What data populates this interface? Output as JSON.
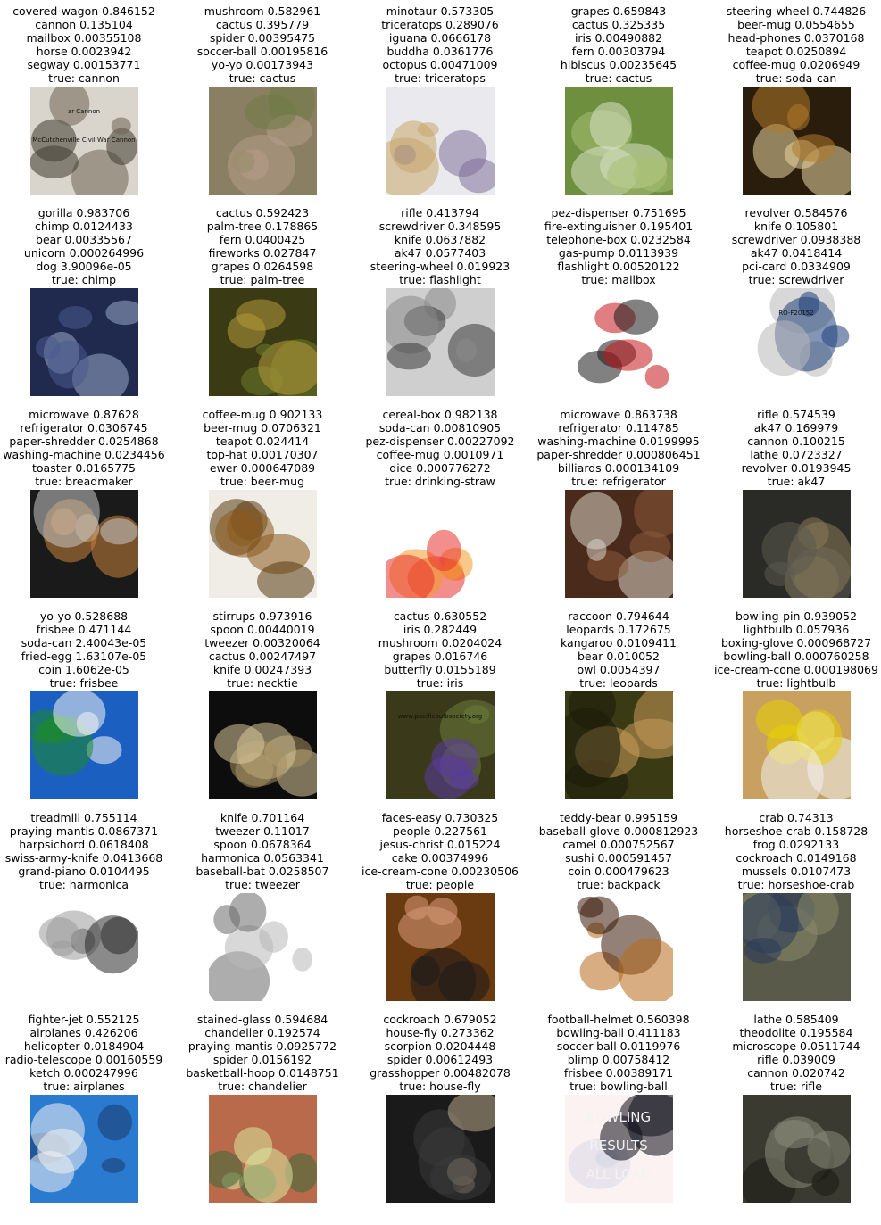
{
  "cells": [
    {
      "preds": [
        "covered-wagon 0.846152",
        "cannon 0.135104",
        "mailbox 0.00355108",
        "horse 0.0023942",
        "segway 0.00153771"
      ],
      "truth": "true: cannon",
      "image": "cannon-shelter-photo",
      "image_text": [
        "ar Cannon",
        "McCutchenville Civil War Cannon"
      ],
      "colors": [
        "#d9d4cc",
        "#6e6250",
        "#3f3a30"
      ]
    },
    {
      "preds": [
        "mushroom 0.582961",
        "cactus 0.395779",
        "spider 0.00395475",
        "soccer-ball 0.00195816",
        "yo-yo 0.00173943"
      ],
      "truth": "true: cactus",
      "image": "barrel-cactus-photo",
      "colors": [
        "#8a7f63",
        "#6f7a46",
        "#b79c8a"
      ]
    },
    {
      "preds": [
        "minotaur 0.573305",
        "triceratops 0.289076",
        "iguana 0.0666178",
        "buddha 0.0361776",
        "octopus 0.00471009"
      ],
      "truth": "true: triceratops",
      "image": "triceratops-figure-photo",
      "colors": [
        "#eaeaee",
        "#7f6f9a",
        "#c7a66a"
      ]
    },
    {
      "preds": [
        "grapes 0.659843",
        "cactus 0.325335",
        "iris 0.00490882",
        "fern 0.00303794",
        "hibiscus 0.00235645"
      ],
      "truth": "true: cactus",
      "image": "prickly-pear-photo",
      "colors": [
        "#6d8f3e",
        "#a7bf73",
        "#d8e2c4"
      ]
    },
    {
      "preds": [
        "steering-wheel 0.744826",
        "beer-mug 0.0554655",
        "head-phones 0.0370168",
        "teapot 0.0250894",
        "coffee-mug 0.0206949"
      ],
      "truth": "true: soda-can",
      "image": "soda-can-photo",
      "colors": [
        "#2b1d0c",
        "#b07a2a",
        "#e8d6a0"
      ]
    },
    {
      "preds": [
        "gorilla 0.983706",
        "chimp 0.0124433",
        "bear 0.00335567",
        "unicorn 0.000264996",
        "dog 3.90096e-05"
      ],
      "truth": "true: chimp",
      "image": "chimp-face-photo",
      "colors": [
        "#1f2a4e",
        "#4a5a8f",
        "#9aa8c8"
      ]
    },
    {
      "preds": [
        "cactus 0.592423",
        "palm-tree 0.178865",
        "fern 0.0400425",
        "fireworks 0.027847",
        "grapes 0.0264598"
      ],
      "truth": "true: palm-tree",
      "image": "palm-frond-photo",
      "colors": [
        "#3a3a14",
        "#b49a3a",
        "#6d7a2c"
      ]
    },
    {
      "preds": [
        "rifle 0.413794",
        "screwdriver 0.348595",
        "knife 0.0637882",
        "ak47 0.0577403",
        "steering-wheel 0.019923"
      ],
      "truth": "true: flashlight",
      "image": "tool-case-photo",
      "colors": [
        "#cfcfcf",
        "#3a3a3a",
        "#8a8a8a"
      ]
    },
    {
      "preds": [
        "pez-dispenser 0.751695",
        "fire-extinguisher 0.195401",
        "telephone-box 0.0232584",
        "gas-pump 0.0113939",
        "flashlight 0.00520122"
      ],
      "truth": "true: mailbox",
      "image": "red-pillar-box-photo",
      "colors": [
        "#ffffff",
        "#c4161c",
        "#1a1a1a"
      ]
    },
    {
      "preds": [
        "revolver 0.584576",
        "knife 0.105801",
        "screwdriver 0.0938388",
        "ak47 0.0418414",
        "pci-card 0.0334909"
      ],
      "truth": "true: screwdriver",
      "image": "drill-kit-photo",
      "image_text": [
        "RO-F20152"
      ],
      "colors": [
        "#ffffff",
        "#1f3f7a",
        "#b8b8b8"
      ]
    },
    {
      "preds": [
        "microwave 0.87628",
        "refrigerator 0.0306745",
        "paper-shredder 0.0254868",
        "washing-machine 0.0234456",
        "toaster 0.0165775"
      ],
      "truth": "true: breadmaker",
      "image": "breadmaker-photo",
      "colors": [
        "#1a1a1a",
        "#c9c9c9",
        "#c8833a"
      ]
    },
    {
      "preds": [
        "coffee-mug 0.902133",
        "beer-mug 0.0706321",
        "teapot 0.024414",
        "top-hat 0.00170307",
        "ewer 0.000647089"
      ],
      "truth": "true: beer-mug",
      "image": "stein-photo",
      "colors": [
        "#f0ede6",
        "#8a5a1c",
        "#5a3a10"
      ]
    },
    {
      "preds": [
        "cereal-box 0.982138",
        "soda-can 0.00810905",
        "pez-dispenser 0.00227092",
        "coffee-mug 0.0010971",
        "dice 0.000776272"
      ],
      "truth": "true: drinking-straw",
      "image": "straw-box-photo",
      "colors": [
        "#ffffff",
        "#e8322b",
        "#f39a2a"
      ]
    },
    {
      "preds": [
        "microwave 0.863738",
        "refrigerator 0.114785",
        "washing-machine 0.0199995",
        "paper-shredder 0.000806451",
        "billiards 0.000134109"
      ],
      "truth": "true: refrigerator",
      "image": "kitchen-fridge-photo",
      "colors": [
        "#4a2a1a",
        "#d8d4c8",
        "#8a5a3a"
      ]
    },
    {
      "preds": [
        "rifle 0.574539",
        "ak47 0.169979",
        "cannon 0.100215",
        "lathe 0.0723327",
        "revolver 0.0193945"
      ],
      "truth": "true: ak47",
      "image": "rifle-soldier-photo",
      "colors": [
        "#2a2a26",
        "#5a5a50",
        "#8a7a5a"
      ]
    },
    {
      "preds": [
        "yo-yo 0.528688",
        "frisbee 0.471144",
        "soda-can 2.40043e-05",
        "fried-egg 1.63107e-05",
        "coin 1.6062e-05"
      ],
      "truth": "true: frisbee",
      "image": "frisbee-photo",
      "colors": [
        "#1b5fc1",
        "#f4f4f4",
        "#1b8a2a"
      ]
    },
    {
      "preds": [
        "stirrups 0.973916",
        "spoon 0.00440019",
        "tweezer 0.00320064",
        "cactus 0.00247497",
        "knife 0.00247393"
      ],
      "truth": "true: necktie",
      "image": "necktie-pair-photo",
      "colors": [
        "#0d0d0d",
        "#d8c89a",
        "#a89060"
      ]
    },
    {
      "preds": [
        "cactus 0.630552",
        "iris 0.282449",
        "mushroom 0.0204024",
        "grapes 0.016746",
        "butterfly 0.0155189"
      ],
      "truth": "true: iris",
      "image": "iris-flowers-photo",
      "image_text": [
        "www.pacificbulbsociety.org"
      ],
      "colors": [
        "#3a3a1a",
        "#5a3aa0",
        "#6a7a3a"
      ]
    },
    {
      "preds": [
        "raccoon 0.794644",
        "leopards 0.172675",
        "kangaroo 0.0109411",
        "bear 0.010052",
        "owl 0.0054397"
      ],
      "truth": "true: leopards",
      "image": "cheetah-face-photo",
      "colors": [
        "#3a3a14",
        "#c89a5a",
        "#1a1a0a"
      ]
    },
    {
      "preds": [
        "bowling-pin 0.939052",
        "lightbulb 0.057936",
        "boxing-glove 0.000968727",
        "bowling-ball 0.000760258",
        "ice-cream-cone 0.000198069"
      ],
      "truth": "true: lightbulb",
      "image": "giant-bulb-photo",
      "colors": [
        "#c8a060",
        "#f2f2f2",
        "#e8d000"
      ]
    },
    {
      "preds": [
        "treadmill 0.755114",
        "praying-mantis 0.0867371",
        "harpsichord 0.0618408",
        "swiss-army-knife 0.0413668",
        "grand-piano 0.0104495"
      ],
      "truth": "true: harmonica",
      "image": "harmonica-holder-photo",
      "colors": [
        "#ffffff",
        "#2a2a2a",
        "#9a9a9a"
      ]
    },
    {
      "preds": [
        "knife 0.701164",
        "tweezer 0.11017",
        "spoon 0.0678364",
        "harmonica 0.0563341",
        "baseball-bat 0.0258507"
      ],
      "truth": "true: tweezer",
      "image": "tweezer-photo",
      "colors": [
        "#ffffff",
        "#b8b8b8",
        "#6a6a6a"
      ]
    },
    {
      "preds": [
        "faces-easy 0.730325",
        "people 0.227561",
        "jesus-christ 0.015224",
        "cake 0.00374996",
        "ice-cream-cone 0.00230506"
      ],
      "truth": "true: people",
      "image": "smiling-man-photo",
      "colors": [
        "#6a3a10",
        "#d89a7a",
        "#1a1a1a"
      ]
    },
    {
      "preds": [
        "teddy-bear 0.995159",
        "baseball-glove 0.000812923",
        "camel 0.000752567",
        "sushi 0.000591457",
        "coin 0.000479623"
      ],
      "truth": "true: backpack",
      "image": "plush-backpack-photo",
      "colors": [
        "#ffffff",
        "#b86a1a",
        "#3a1a0a"
      ]
    },
    {
      "preds": [
        "crab 0.74313",
        "horseshoe-crab 0.158728",
        "frog 0.0292133",
        "cockroach 0.0149168",
        "mussels 0.0107473"
      ],
      "truth": "true: horseshoe-crab",
      "image": "horseshoe-crab-photo",
      "colors": [
        "#5a5a4a",
        "#2a3a5a",
        "#8a8a6a"
      ]
    },
    {
      "preds": [
        "fighter-jet 0.552125",
        "airplanes 0.426206",
        "helicopter 0.0184904",
        "radio-telescope 0.00160559",
        "ketch 0.000247996"
      ],
      "truth": "true: airplanes",
      "image": "airliner-photo",
      "colors": [
        "#2a7ad0",
        "#f2f2f2",
        "#1a3a6a"
      ]
    },
    {
      "preds": [
        "stained-glass 0.594684",
        "chandelier 0.192574",
        "praying-mantis 0.0925772",
        "spider 0.0156192",
        "basketball-hoop 0.0148751"
      ],
      "truth": "true: chandelier",
      "image": "chandelier-photo",
      "colors": [
        "#b86a4a",
        "#3a6a3a",
        "#d8e8a0"
      ]
    },
    {
      "preds": [
        "cockroach 0.679052",
        "house-fly 0.273362",
        "scorpion 0.0204448",
        "spider 0.00612493",
        "grasshopper 0.00482078"
      ],
      "truth": "true: house-fly",
      "image": "housefly-photo",
      "colors": [
        "#1a1a1a",
        "#b8a88a",
        "#3a3a3a"
      ]
    },
    {
      "preds": [
        "football-helmet 0.560398",
        "bowling-ball 0.411183",
        "soccer-ball 0.0119976",
        "blimp 0.00758412",
        "frisbee 0.00389171"
      ],
      "truth": "true: bowling-ball",
      "image": "bowling-ball-graphic",
      "image_text": [
        "BOWLING",
        "RESULTS",
        "ALL LOAD"
      ],
      "colors": [
        "#fdf2f2",
        "#0d0d18",
        "#d8d8e8"
      ]
    },
    {
      "preds": [
        "lathe 0.585409",
        "theodolite 0.195584",
        "microscope 0.0511744",
        "rifle 0.039009",
        "cannon 0.020742"
      ],
      "truth": "true: rifle",
      "image": "machine-gunner-photo",
      "colors": [
        "#3a3a30",
        "#8a8a7a",
        "#1a1a14"
      ]
    }
  ]
}
